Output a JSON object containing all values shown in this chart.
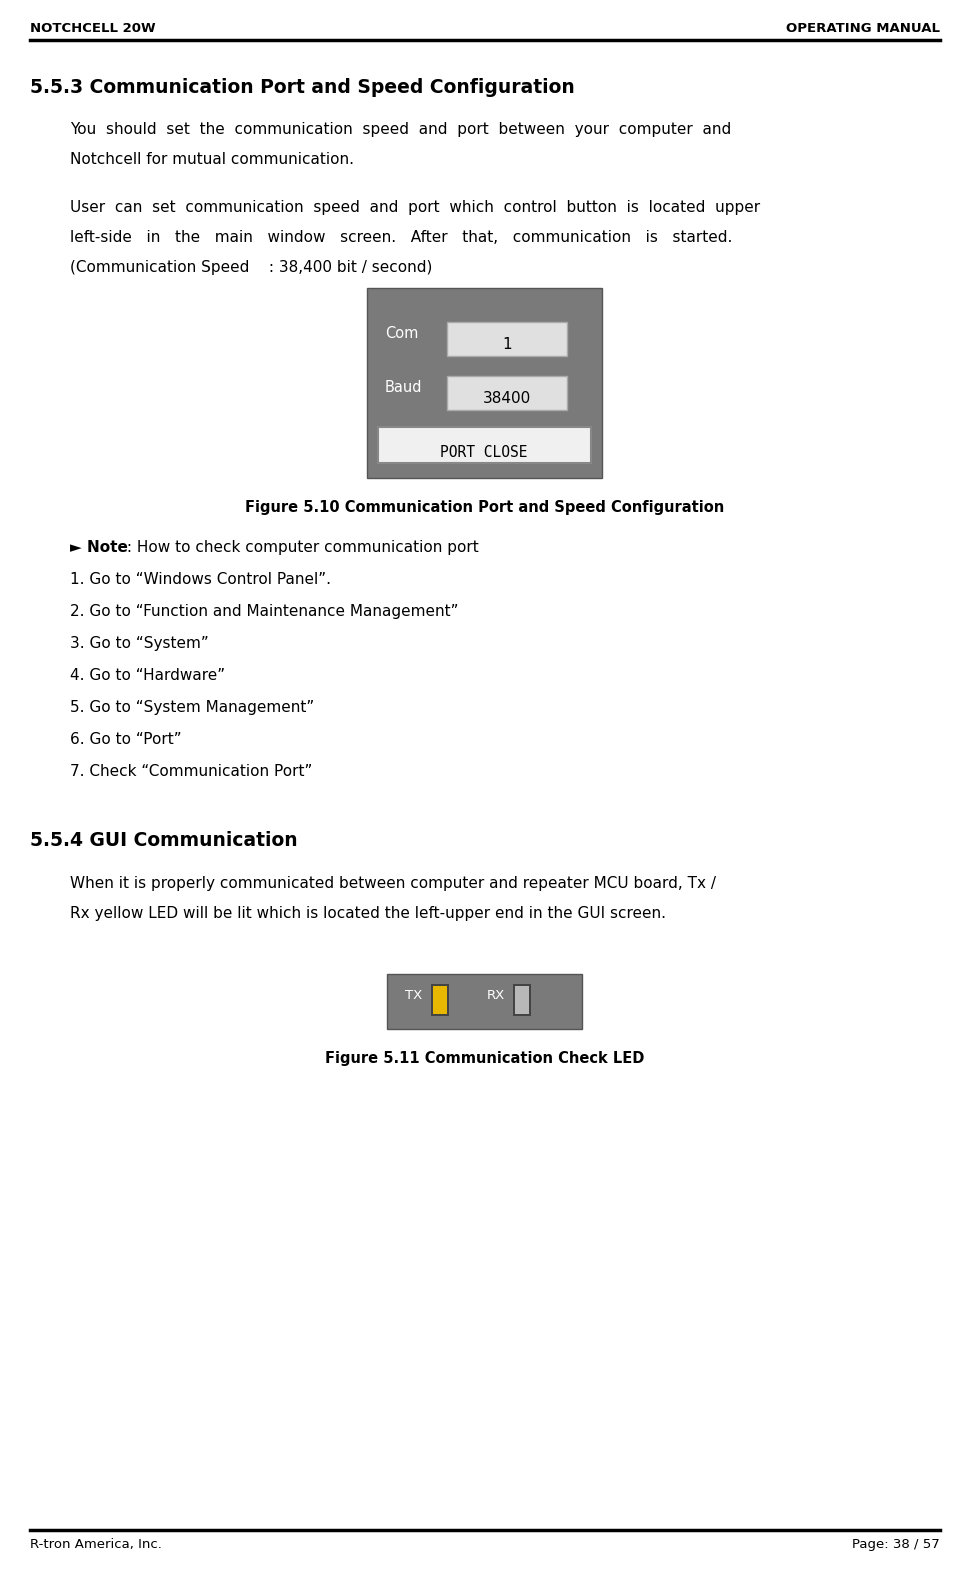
{
  "header_left": "NOTCHCELL 20W",
  "header_right": "OPERATING MANUAL",
  "footer_left": "R-tron America, Inc.",
  "footer_right": "Page: 38 / 57",
  "section_title": "5.5.3 Communication Port and Speed Configuration",
  "para1_line1": "You  should  set  the  communication  speed  and  port  between  your  computer  and",
  "para1_line2": "Notchcell for mutual communication.",
  "para2_line1": "User  can  set  communication  speed  and  port  which  control  button  is  located  upper",
  "para2_line2": "left-side   in   the   main   window   screen.   After   that,   communication   is   started.",
  "para2_line3": "(Communication Speed    : 38,400 bit / second)",
  "fig1_caption": "Figure 5.10 Communication Port and Speed Configuration",
  "note_title": "► Note",
  "note_text": " : How to check computer communication port",
  "note_items": [
    "1. Go to “Windows Control Panel”.",
    "2. Go to “Function and Maintenance Management”",
    "3. Go to “System”",
    "4. Go to “Hardware”",
    "5. Go to “System Management”",
    "6. Go to “Port”",
    "7. Check “Communication Port”"
  ],
  "section2_title": "5.5.4 GUI Communication",
  "para3_line1": "When it is properly communicated between computer and repeater MCU board, Tx /",
  "para3_line2": "Rx yellow LED will be lit which is located the left-upper end in the GUI screen.",
  "fig2_caption": "Figure 5.11 Communication Check LED",
  "bg_color": "#ffffff",
  "text_color": "#000000",
  "header_font_size": 9.5,
  "body_font_size": 11,
  "section_font_size": 13.5,
  "caption_font_size": 10.5,
  "gui_bg": "#7a7a7a",
  "gui_field_bg": "#e0e0e0",
  "gui_btn_bg": "#d4d4d4",
  "led_bg": "#7a7a7a",
  "led_yellow": "#e8b800",
  "led_gray": "#b8b8b8"
}
